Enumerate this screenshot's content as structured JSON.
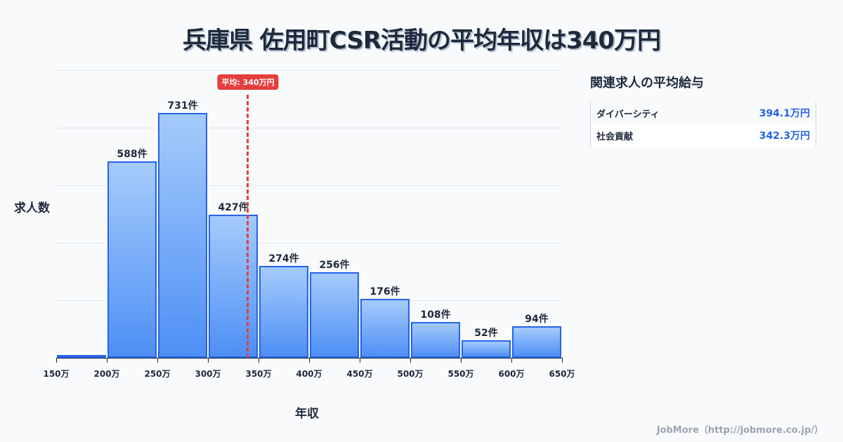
{
  "title": "兵庫県 佐用町CSR活動の平均年収は340万円",
  "y_axis_label": "求人数",
  "x_axis_label": "年収",
  "average_badge": "平均: 340万円",
  "panel": {
    "title": "関連求人の平均給与",
    "rows": [
      {
        "label": "ダイバーシティ",
        "value": "394.1万円"
      },
      {
        "label": "社会貢献",
        "value": "342.3万円"
      }
    ]
  },
  "footer": "JobMore（http://jobmore.co.jp/）",
  "bars": [
    {
      "label": ""
    },
    {
      "label": "588件"
    },
    {
      "label": "731件"
    },
    {
      "label": "427件"
    },
    {
      "label": "274件"
    },
    {
      "label": "256件"
    },
    {
      "label": "176件"
    },
    {
      "label": "108件"
    },
    {
      "label": "52件"
    },
    {
      "label": "94件"
    }
  ],
  "ticks": [
    "150万",
    "200万",
    "250万",
    "300万",
    "350万",
    "400万",
    "450万",
    "500万",
    "550万",
    "600万",
    "650万"
  ],
  "chart_data": {
    "type": "bar",
    "title": "兵庫県 佐用町CSR活動の平均年収は340万円",
    "xlabel": "年収",
    "ylabel": "求人数",
    "categories": [
      "150-200万",
      "200-250万",
      "250-300万",
      "300-350万",
      "350-400万",
      "400-450万",
      "450-500万",
      "500-550万",
      "550-600万",
      "600-650万"
    ],
    "values": [
      3,
      588,
      731,
      427,
      274,
      256,
      176,
      108,
      52,
      94
    ],
    "x_ticks": [
      "150万",
      "200万",
      "250万",
      "300万",
      "350万",
      "400万",
      "450万",
      "500万",
      "550万",
      "600万",
      "650万"
    ],
    "ylim": [
      0,
      860
    ],
    "grid": true,
    "annotations": [
      {
        "type": "vline",
        "x": 340,
        "label": "平均: 340万円",
        "color": "#e53e3e"
      }
    ],
    "bar_color": "#2563eb",
    "unit": "件"
  }
}
